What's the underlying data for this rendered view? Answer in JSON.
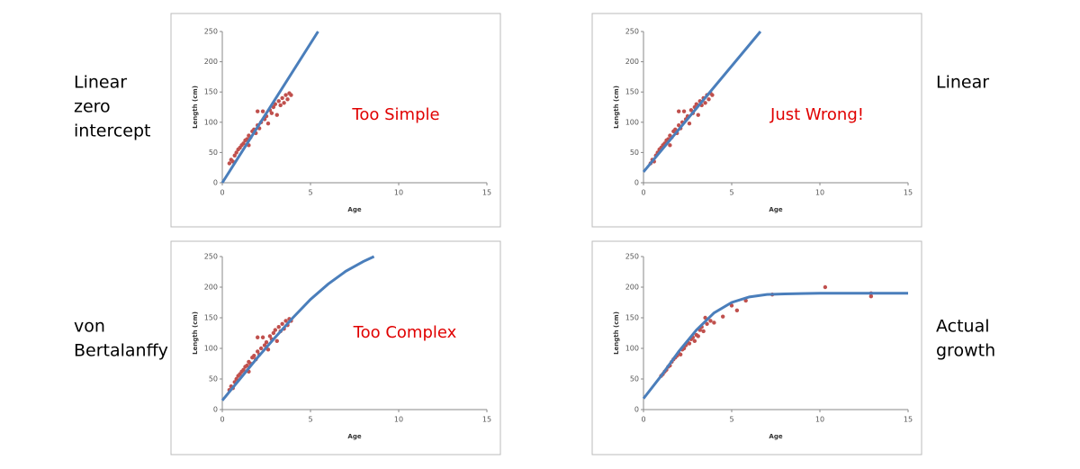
{
  "chart_data": [
    {
      "type": "scatter",
      "model_label": [
        "Linear",
        "zero",
        "intercept"
      ],
      "annotation": "Too Simple",
      "xlabel": "Age",
      "ylabel": "Length (cm)",
      "xlim": [
        0,
        15
      ],
      "ylim": [
        0,
        250
      ],
      "xticks": [
        0,
        5,
        10,
        15
      ],
      "yticks": [
        0,
        50,
        100,
        150,
        200,
        250
      ],
      "series": [
        {
          "mode": "markers",
          "color": "#c0504d",
          "x": [
            0.4,
            0.5,
            0.6,
            0.7,
            0.8,
            0.9,
            1.0,
            1.1,
            1.2,
            1.3,
            1.4,
            1.5,
            1.5,
            1.6,
            1.7,
            1.8,
            1.9,
            2.0,
            2.0,
            2.1,
            2.2,
            2.3,
            2.4,
            2.5,
            2.6,
            2.7,
            2.8,
            2.9,
            3.0,
            3.1,
            3.2,
            3.3,
            3.4,
            3.5,
            3.6,
            3.7,
            3.8,
            3.9
          ],
          "values": [
            32,
            38,
            35,
            45,
            50,
            55,
            58,
            62,
            65,
            70,
            72,
            78,
            62,
            75,
            85,
            88,
            82,
            95,
            118,
            90,
            100,
            118,
            105,
            110,
            98,
            120,
            115,
            125,
            130,
            112,
            135,
            128,
            140,
            132,
            145,
            138,
            148,
            145
          ]
        },
        {
          "mode": "line",
          "color": "#4a7ebb",
          "x": [
            0,
            5.43
          ],
          "values": [
            0,
            250
          ]
        }
      ]
    },
    {
      "type": "scatter",
      "model_label": [
        "Linear"
      ],
      "annotation": "Just Wrong!",
      "xlabel": "Age",
      "ylabel": "Length (cm)",
      "xlim": [
        0,
        15
      ],
      "ylim": [
        0,
        250
      ],
      "xticks": [
        0,
        5,
        10,
        15
      ],
      "yticks": [
        0,
        50,
        100,
        150,
        200,
        250
      ],
      "series": [
        {
          "mode": "markers",
          "color": "#c0504d",
          "x": [
            0.4,
            0.5,
            0.6,
            0.7,
            0.8,
            0.9,
            1.0,
            1.1,
            1.2,
            1.3,
            1.4,
            1.5,
            1.5,
            1.6,
            1.7,
            1.8,
            1.9,
            2.0,
            2.0,
            2.1,
            2.2,
            2.3,
            2.4,
            2.5,
            2.6,
            2.7,
            2.8,
            2.9,
            3.0,
            3.1,
            3.2,
            3.3,
            3.4,
            3.5,
            3.6,
            3.7,
            3.8,
            3.9
          ],
          "values": [
            32,
            38,
            35,
            45,
            50,
            55,
            58,
            62,
            65,
            70,
            72,
            78,
            62,
            75,
            85,
            88,
            82,
            95,
            118,
            90,
            100,
            118,
            105,
            110,
            98,
            120,
            115,
            125,
            130,
            112,
            135,
            128,
            140,
            132,
            145,
            138,
            148,
            145
          ]
        },
        {
          "mode": "line",
          "color": "#4a7ebb",
          "x": [
            0,
            6.63
          ],
          "values": [
            18,
            250
          ]
        }
      ]
    },
    {
      "type": "scatter",
      "model_label": [
        "von",
        "Bertalanffy"
      ],
      "annotation": "Too Complex",
      "xlabel": "Age",
      "ylabel": "Length (cm)",
      "xlim": [
        0,
        15
      ],
      "ylim": [
        0,
        250
      ],
      "xticks": [
        0,
        5,
        10,
        15
      ],
      "yticks": [
        0,
        50,
        100,
        150,
        200,
        250
      ],
      "series": [
        {
          "mode": "markers",
          "color": "#c0504d",
          "x": [
            0.4,
            0.5,
            0.6,
            0.7,
            0.8,
            0.9,
            1.0,
            1.1,
            1.2,
            1.3,
            1.4,
            1.5,
            1.5,
            1.6,
            1.7,
            1.8,
            1.9,
            2.0,
            2.0,
            2.1,
            2.2,
            2.3,
            2.4,
            2.5,
            2.6,
            2.7,
            2.8,
            2.9,
            3.0,
            3.1,
            3.2,
            3.3,
            3.4,
            3.5,
            3.6,
            3.7,
            3.8,
            3.9
          ],
          "values": [
            32,
            38,
            35,
            45,
            50,
            55,
            58,
            62,
            65,
            70,
            72,
            78,
            62,
            75,
            85,
            88,
            82,
            95,
            118,
            90,
            100,
            118,
            105,
            110,
            98,
            120,
            115,
            125,
            130,
            112,
            135,
            128,
            140,
            132,
            145,
            138,
            148,
            145
          ]
        },
        {
          "mode": "line",
          "color": "#4a7ebb",
          "x": [
            0,
            1,
            2,
            3,
            4,
            5,
            6,
            7,
            8,
            8.6
          ],
          "values": [
            15,
            50,
            85,
            118,
            150,
            180,
            205,
            226,
            242,
            250
          ]
        }
      ]
    },
    {
      "type": "scatter",
      "model_label": [
        "Actual",
        "growth"
      ],
      "xlabel": "Age",
      "ylabel": "Length (cm)",
      "xlim": [
        0,
        15
      ],
      "ylim": [
        0,
        250
      ],
      "xticks": [
        0,
        5,
        10,
        15
      ],
      "yticks": [
        0,
        50,
        100,
        150,
        200,
        250
      ],
      "series": [
        {
          "mode": "markers",
          "color": "#c0504d",
          "x": [
            1.0,
            1.1,
            1.2,
            1.3,
            1.4,
            1.5,
            1.6,
            1.7,
            1.8,
            1.9,
            2.0,
            2.1,
            2.2,
            2.3,
            2.4,
            2.5,
            2.6,
            2.7,
            2.8,
            2.9,
            3.0,
            3.1,
            3.2,
            3.3,
            3.4,
            3.5,
            3.6,
            3.8,
            4.0,
            4.5,
            5.0,
            5.3,
            5.8,
            7.3,
            10.3,
            12.9,
            12.9
          ],
          "values": [
            55,
            58,
            62,
            65,
            70,
            72,
            78,
            82,
            85,
            88,
            92,
            90,
            98,
            100,
            105,
            110,
            108,
            115,
            118,
            112,
            122,
            120,
            130,
            135,
            128,
            150,
            140,
            145,
            142,
            152,
            170,
            162,
            178,
            188,
            200,
            185,
            190
          ]
        },
        {
          "mode": "line",
          "color": "#4a7ebb",
          "x": [
            0,
            1,
            2,
            3,
            4,
            5,
            6,
            7,
            8,
            10,
            15
          ],
          "values": [
            18,
            55,
            95,
            130,
            158,
            175,
            184,
            188,
            189,
            190,
            190
          ]
        }
      ]
    }
  ]
}
